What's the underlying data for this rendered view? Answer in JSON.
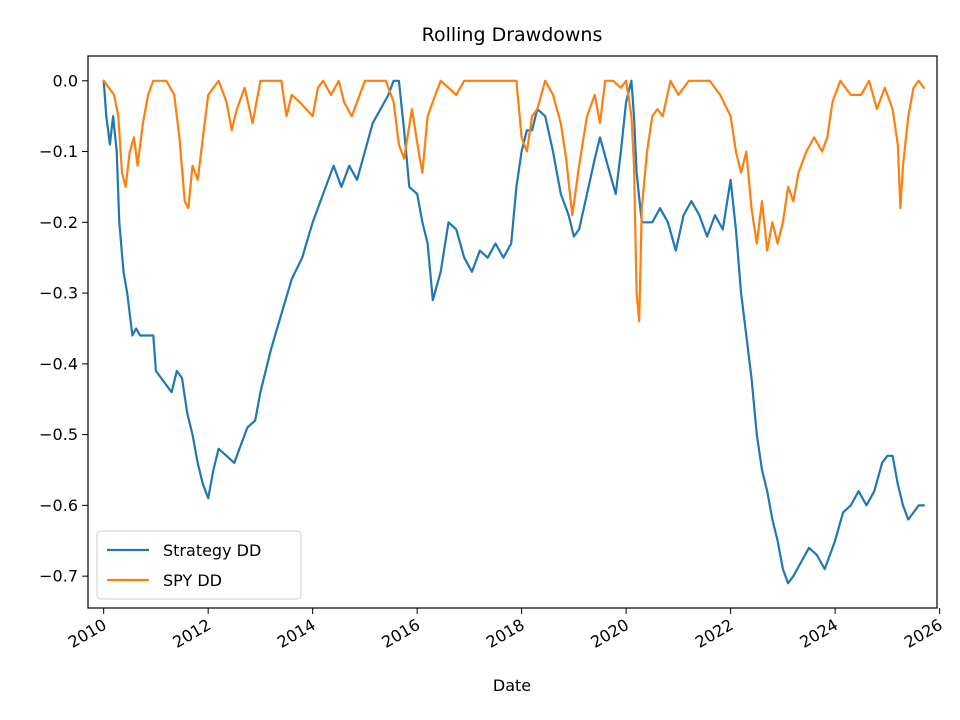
{
  "chart_data": {
    "type": "line",
    "title": "Rolling Drawdowns",
    "xlabel": "Date",
    "ylabel": "",
    "xlim": [
      2009.7,
      2025.95
    ],
    "ylim": [
      -0.745,
      0.035
    ],
    "x_ticks": [
      2010,
      2012,
      2014,
      2016,
      2018,
      2020,
      2022,
      2024,
      2026
    ],
    "x_tick_labels": [
      "2010",
      "2012",
      "2014",
      "2016",
      "2018",
      "2020",
      "2022",
      "2024",
      "2026"
    ],
    "y_ticks": [
      0.0,
      -0.1,
      -0.2,
      -0.3,
      -0.4,
      -0.5,
      -0.6,
      -0.7
    ],
    "y_tick_labels": [
      "0.0",
      "−0.1",
      "−0.2",
      "−0.3",
      "−0.4",
      "−0.5",
      "−0.6",
      "−0.7"
    ],
    "grid": false,
    "legend_position": "lower-left",
    "series": [
      {
        "name": "Strategy DD",
        "color": "#1f77b4",
        "x": [
          2010.0,
          2010.05,
          2010.12,
          2010.18,
          2010.25,
          2010.3,
          2010.38,
          2010.45,
          2010.55,
          2010.62,
          2010.7,
          2010.78,
          2010.85,
          2010.95,
          2011.0,
          2011.1,
          2011.2,
          2011.3,
          2011.4,
          2011.5,
          2011.6,
          2011.7,
          2011.8,
          2011.9,
          2012.0,
          2012.1,
          2012.2,
          2012.35,
          2012.5,
          2012.6,
          2012.75,
          2012.9,
          2013.0,
          2013.2,
          2013.4,
          2013.6,
          2013.8,
          2014.0,
          2014.2,
          2014.4,
          2014.55,
          2014.7,
          2014.85,
          2015.0,
          2015.15,
          2015.3,
          2015.45,
          2015.55,
          2015.65,
          2015.75,
          2015.85,
          2016.0,
          2016.1,
          2016.2,
          2016.3,
          2016.45,
          2016.6,
          2016.75,
          2016.9,
          2017.05,
          2017.2,
          2017.35,
          2017.5,
          2017.65,
          2017.8,
          2017.9,
          2018.0,
          2018.1,
          2018.2,
          2018.3,
          2018.45,
          2018.6,
          2018.75,
          2018.9,
          2019.0,
          2019.1,
          2019.25,
          2019.4,
          2019.5,
          2019.65,
          2019.8,
          2019.9,
          2020.0,
          2020.1,
          2020.15,
          2020.2,
          2020.3,
          2020.4,
          2020.5,
          2020.65,
          2020.8,
          2020.95,
          2021.1,
          2021.25,
          2021.4,
          2021.55,
          2021.7,
          2021.85,
          2022.0,
          2022.1,
          2022.2,
          2022.3,
          2022.4,
          2022.5,
          2022.6,
          2022.7,
          2022.8,
          2022.9,
          2023.0,
          2023.1,
          2023.2,
          2023.35,
          2023.5,
          2023.65,
          2023.8,
          2024.0,
          2024.15,
          2024.3,
          2024.45,
          2024.6,
          2024.75,
          2024.9,
          2025.0,
          2025.1,
          2025.2,
          2025.3,
          2025.4,
          2025.5,
          2025.6,
          2025.7
        ],
        "y": [
          0.0,
          -0.05,
          -0.09,
          -0.05,
          -0.1,
          -0.2,
          -0.27,
          -0.3,
          -0.36,
          -0.35,
          -0.36,
          -0.36,
          -0.36,
          -0.36,
          -0.41,
          -0.42,
          -0.43,
          -0.44,
          -0.41,
          -0.42,
          -0.47,
          -0.5,
          -0.54,
          -0.57,
          -0.59,
          -0.55,
          -0.52,
          -0.53,
          -0.54,
          -0.52,
          -0.49,
          -0.48,
          -0.44,
          -0.38,
          -0.33,
          -0.28,
          -0.25,
          -0.2,
          -0.16,
          -0.12,
          -0.15,
          -0.12,
          -0.14,
          -0.1,
          -0.06,
          -0.04,
          -0.02,
          0.0,
          0.0,
          -0.07,
          -0.15,
          -0.16,
          -0.2,
          -0.23,
          -0.31,
          -0.27,
          -0.2,
          -0.21,
          -0.25,
          -0.27,
          -0.24,
          -0.25,
          -0.23,
          -0.25,
          -0.23,
          -0.15,
          -0.1,
          -0.07,
          -0.07,
          -0.04,
          -0.05,
          -0.1,
          -0.16,
          -0.19,
          -0.22,
          -0.21,
          -0.16,
          -0.11,
          -0.08,
          -0.12,
          -0.16,
          -0.1,
          -0.03,
          0.0,
          -0.05,
          -0.13,
          -0.2,
          -0.2,
          -0.2,
          -0.18,
          -0.2,
          -0.24,
          -0.19,
          -0.17,
          -0.19,
          -0.22,
          -0.19,
          -0.21,
          -0.14,
          -0.21,
          -0.3,
          -0.36,
          -0.42,
          -0.5,
          -0.55,
          -0.58,
          -0.62,
          -0.65,
          -0.69,
          -0.71,
          -0.7,
          -0.68,
          -0.66,
          -0.67,
          -0.69,
          -0.65,
          -0.61,
          -0.6,
          -0.58,
          -0.6,
          -0.58,
          -0.54,
          -0.53,
          -0.53,
          -0.57,
          -0.6,
          -0.62,
          -0.61,
          -0.6,
          -0.6
        ]
      },
      {
        "name": "SPY DD",
        "color": "#ff7f0e",
        "x": [
          2010.0,
          2010.1,
          2010.2,
          2010.28,
          2010.35,
          2010.42,
          2010.5,
          2010.58,
          2010.65,
          2010.75,
          2010.85,
          2010.95,
          2011.05,
          2011.2,
          2011.35,
          2011.45,
          2011.55,
          2011.62,
          2011.7,
          2011.8,
          2011.9,
          2012.0,
          2012.2,
          2012.35,
          2012.45,
          2012.55,
          2012.7,
          2012.85,
          2013.0,
          2013.2,
          2013.4,
          2013.5,
          2013.6,
          2013.75,
          2014.0,
          2014.1,
          2014.2,
          2014.35,
          2014.5,
          2014.6,
          2014.75,
          2014.9,
          2015.0,
          2015.2,
          2015.4,
          2015.55,
          2015.65,
          2015.75,
          2015.9,
          2016.05,
          2016.1,
          2016.2,
          2016.3,
          2016.45,
          2016.6,
          2016.75,
          2016.9,
          2017.0,
          2017.3,
          2017.6,
          2017.9,
          2018.0,
          2018.1,
          2018.2,
          2018.3,
          2018.45,
          2018.6,
          2018.75,
          2018.85,
          2018.97,
          2019.1,
          2019.25,
          2019.4,
          2019.5,
          2019.6,
          2019.75,
          2019.9,
          2020.0,
          2020.1,
          2020.15,
          2020.2,
          2020.25,
          2020.3,
          2020.4,
          2020.5,
          2020.6,
          2020.7,
          2020.85,
          2021.0,
          2021.2,
          2021.4,
          2021.6,
          2021.8,
          2022.0,
          2022.1,
          2022.2,
          2022.3,
          2022.4,
          2022.5,
          2022.6,
          2022.7,
          2022.8,
          2022.9,
          2023.0,
          2023.1,
          2023.2,
          2023.3,
          2023.45,
          2023.6,
          2023.75,
          2023.85,
          2023.95,
          2024.1,
          2024.3,
          2024.5,
          2024.65,
          2024.8,
          2024.95,
          2025.1,
          2025.2,
          2025.25,
          2025.3,
          2025.4,
          2025.5,
          2025.6,
          2025.7
        ],
        "y": [
          0.0,
          -0.01,
          -0.02,
          -0.05,
          -0.13,
          -0.15,
          -0.1,
          -0.08,
          -0.12,
          -0.06,
          -0.02,
          0.0,
          0.0,
          0.0,
          -0.02,
          -0.08,
          -0.17,
          -0.18,
          -0.12,
          -0.14,
          -0.08,
          -0.02,
          0.0,
          -0.03,
          -0.07,
          -0.04,
          -0.01,
          -0.06,
          0.0,
          0.0,
          0.0,
          -0.05,
          -0.02,
          -0.03,
          -0.05,
          -0.01,
          0.0,
          -0.02,
          0.0,
          -0.03,
          -0.05,
          -0.02,
          0.0,
          0.0,
          0.0,
          -0.03,
          -0.09,
          -0.11,
          -0.04,
          -0.11,
          -0.13,
          -0.05,
          -0.03,
          0.0,
          -0.01,
          -0.02,
          0.0,
          0.0,
          0.0,
          0.0,
          0.0,
          -0.08,
          -0.1,
          -0.05,
          -0.04,
          0.0,
          -0.02,
          -0.06,
          -0.11,
          -0.19,
          -0.12,
          -0.05,
          -0.02,
          -0.06,
          0.0,
          0.0,
          -0.01,
          0.0,
          -0.05,
          -0.12,
          -0.3,
          -0.34,
          -0.18,
          -0.1,
          -0.05,
          -0.04,
          -0.05,
          0.0,
          -0.02,
          0.0,
          0.0,
          0.0,
          -0.02,
          -0.05,
          -0.1,
          -0.13,
          -0.1,
          -0.18,
          -0.23,
          -0.17,
          -0.24,
          -0.2,
          -0.23,
          -0.2,
          -0.15,
          -0.17,
          -0.13,
          -0.1,
          -0.08,
          -0.1,
          -0.08,
          -0.03,
          0.0,
          -0.02,
          -0.02,
          0.0,
          -0.04,
          -0.01,
          -0.04,
          -0.09,
          -0.18,
          -0.12,
          -0.05,
          -0.01,
          0.0,
          -0.01
        ]
      }
    ]
  }
}
